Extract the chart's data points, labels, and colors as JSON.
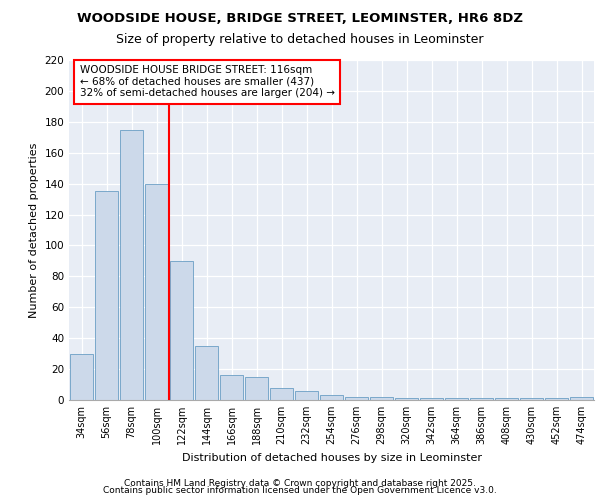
{
  "title1": "WOODSIDE HOUSE, BRIDGE STREET, LEOMINSTER, HR6 8DZ",
  "title2": "Size of property relative to detached houses in Leominster",
  "xlabel": "Distribution of detached houses by size in Leominster",
  "ylabel": "Number of detached properties",
  "categories": [
    "34sqm",
    "56sqm",
    "78sqm",
    "100sqm",
    "122sqm",
    "144sqm",
    "166sqm",
    "188sqm",
    "210sqm",
    "232sqm",
    "254sqm",
    "276sqm",
    "298sqm",
    "320sqm",
    "342sqm",
    "364sqm",
    "386sqm",
    "408sqm",
    "430sqm",
    "452sqm",
    "474sqm"
  ],
  "values": [
    30,
    135,
    175,
    140,
    90,
    35,
    16,
    15,
    8,
    6,
    3,
    2,
    2,
    1,
    1,
    1,
    1,
    1,
    1,
    1,
    2
  ],
  "bar_color": "#ccd9ea",
  "bar_edge_color": "#6a9ec5",
  "annotation_text": "WOODSIDE HOUSE BRIDGE STREET: 116sqm\n← 68% of detached houses are smaller (437)\n32% of semi-detached houses are larger (204) →",
  "ylim": [
    0,
    220
  ],
  "yticks": [
    0,
    20,
    40,
    60,
    80,
    100,
    120,
    140,
    160,
    180,
    200,
    220
  ],
  "background_color": "#e8edf5",
  "grid_color": "#ffffff",
  "footer1": "Contains HM Land Registry data © Crown copyright and database right 2025.",
  "footer2": "Contains public sector information licensed under the Open Government Licence v3.0."
}
